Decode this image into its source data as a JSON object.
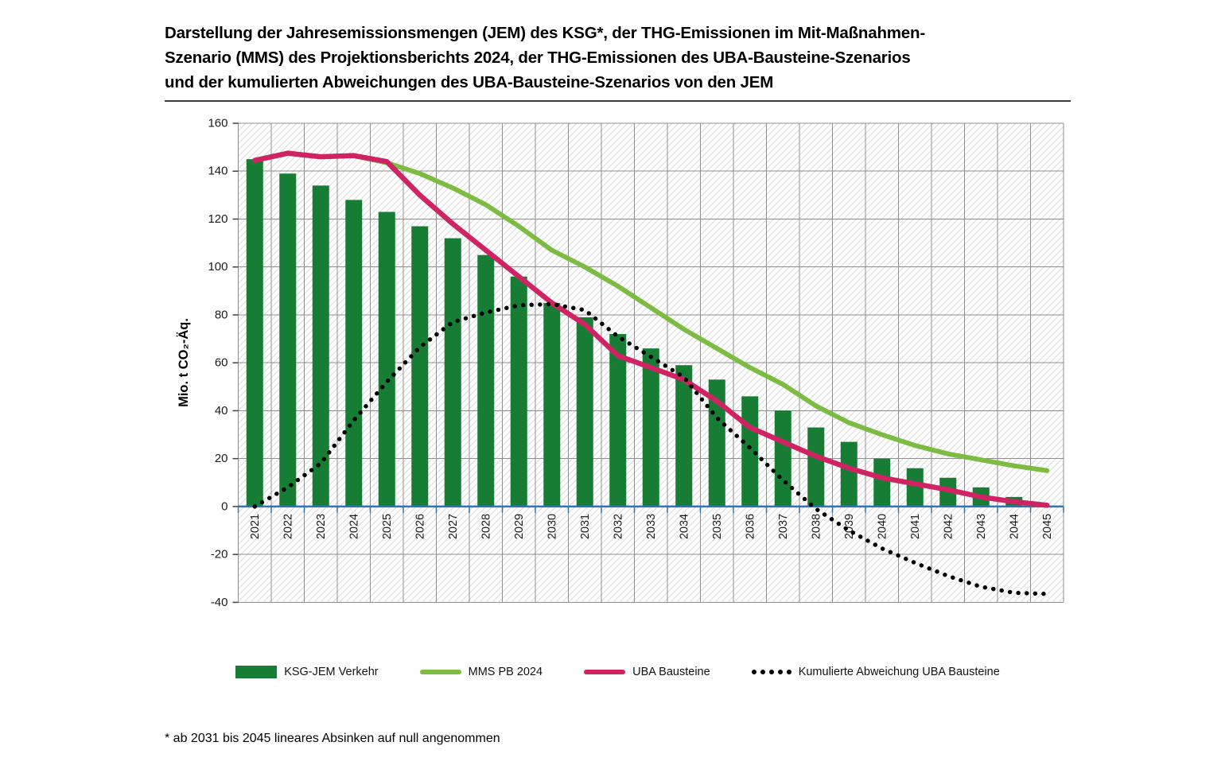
{
  "title": {
    "line1": "Darstellung der Jahresemissionsmengen (JEM) des KSG*, der THG-Emissionen im Mit-Maßnahmen-",
    "line2": "Szenario (MMS) des Projektionsberichts 2024, der THG-Emissionen des UBA-Bausteine-Szenarios",
    "line3": "und der kumulierten Abweichungen des UBA-Bausteine-Szenarios von den JEM"
  },
  "footnote": "* ab 2031 bis 2045 lineares Absinken auf null angenommen",
  "colors": {
    "bar_green": "#177d35",
    "line_green": "#7cbc42",
    "line_pink": "#d02363",
    "dot_black": "#000000",
    "axis_blue": "#2e74b5",
    "grid": "#8f8f8f",
    "hatch": "#d9d9d9",
    "tick": "#404040",
    "label_text": "#1a1a1a"
  },
  "legend": [
    {
      "label": "KSG-JEM Verkehr",
      "swatch": "bar",
      "color": "#177d35"
    },
    {
      "label": "MMS PB 2024",
      "swatch": "line",
      "color": "#7cbc42"
    },
    {
      "label": "UBA Bausteine",
      "swatch": "line",
      "color": "#d02363"
    },
    {
      "label": "Kumulierte Abweichung UBA Bausteine",
      "swatch": "dots",
      "color": "#000000"
    }
  ],
  "chart_data": {
    "type": "combo-bar-line",
    "ylabel": "Mio. t CO₂-Äq.",
    "ylim": [
      -40,
      160
    ],
    "ytick_step": 20,
    "grid": true,
    "legend_position": "bottom",
    "x": [
      2021,
      2022,
      2023,
      2024,
      2025,
      2026,
      2027,
      2028,
      2029,
      2030,
      2031,
      2032,
      2033,
      2034,
      2035,
      2036,
      2037,
      2038,
      2039,
      2040,
      2041,
      2042,
      2043,
      2044,
      2045
    ],
    "series": [
      {
        "name": "KSG-JEM Verkehr",
        "type": "bar",
        "color": "#177d35",
        "values": [
          145,
          139,
          134,
          128,
          123,
          117,
          112,
          105,
          96,
          85,
          79,
          72,
          66,
          59,
          53,
          46,
          40,
          33,
          27,
          20,
          16,
          12,
          8,
          4,
          0
        ]
      },
      {
        "name": "MMS PB 2024",
        "type": "line",
        "color": "#7cbc42",
        "values": [
          144.5,
          147.5,
          146,
          146.5,
          143.5,
          139,
          133,
          126,
          117,
          107,
          100,
          92,
          83,
          74,
          66,
          58,
          51,
          42,
          35,
          30,
          25.5,
          22,
          19.5,
          17,
          15
        ]
      },
      {
        "name": "UBA Bausteine",
        "type": "line",
        "color": "#d02363",
        "values": [
          144.5,
          147.5,
          146,
          146.5,
          144,
          130,
          118,
          107,
          96,
          85,
          76,
          63,
          58,
          53,
          44,
          33,
          27,
          21,
          16,
          12,
          9.5,
          7,
          4,
          2,
          0.5
        ]
      },
      {
        "name": "Kumulierte Abweichung UBA Bausteine",
        "type": "dotted",
        "color": "#000000",
        "values": [
          0,
          8,
          18,
          36,
          52,
          66.5,
          77,
          81,
          84,
          84.5,
          82,
          71,
          62.5,
          54,
          37,
          24.5,
          11,
          -1,
          -10,
          -17.5,
          -23.5,
          -29,
          -33.5,
          -36,
          -36.5
        ]
      }
    ]
  }
}
